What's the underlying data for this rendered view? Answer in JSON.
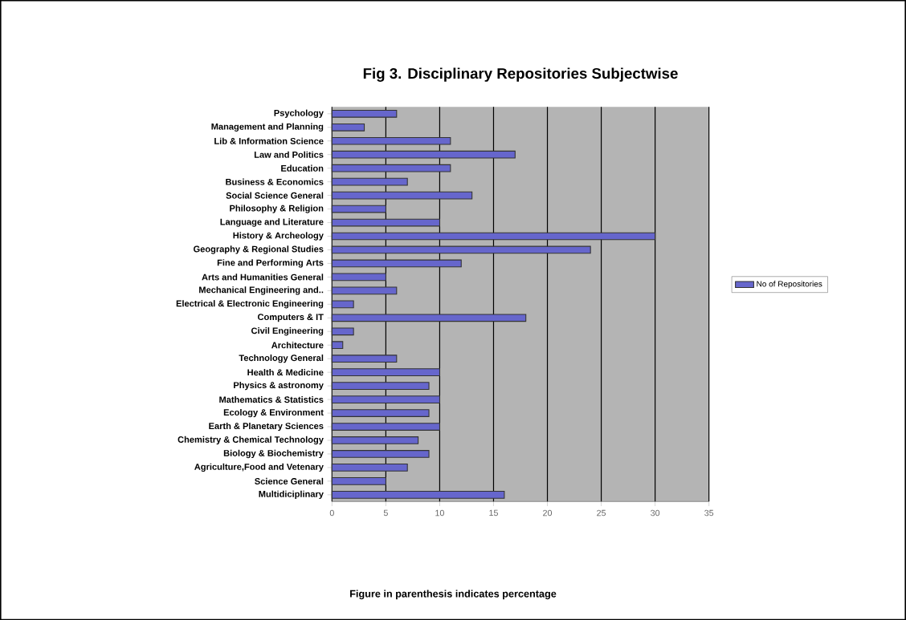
{
  "chart_data": {
    "type": "bar",
    "orientation": "horizontal",
    "title": "Fig 3. Disciplinary Repositories Subjectwise",
    "categories": [
      "Psychology",
      "Management and Planning",
      "Lib & Information Science",
      "Law and Politics",
      "Education",
      "Business & Economics",
      "Social Science General",
      "Philosophy & Religion",
      "Language and Literature",
      "History & Archeology",
      "Geography & Regional Studies",
      "Fine and Performing Arts",
      "Arts and Humanities General",
      "Mechanical Engineering and..",
      "Electrical & Electronic Engineering",
      "Computers & IT",
      "Civil Engineering",
      "Architecture",
      "Technology General",
      "Health & Medicine",
      "Physics & astronomy",
      "Mathematics & Statistics",
      "Ecology & Environment",
      "Earth & Planetary Sciences",
      "Chemistry & Chemical Technology",
      "Biology & Biochemistry",
      "Agriculture,Food and Vetenary",
      "Science General",
      "Multidiciplinary"
    ],
    "series": [
      {
        "name": "No of Repositories",
        "color": "#6666cc",
        "values": [
          6,
          3,
          11,
          17,
          11,
          7,
          13,
          5,
          10,
          30,
          24,
          12,
          5,
          6,
          2,
          18,
          2,
          1,
          6,
          10,
          9,
          10,
          9,
          10,
          8,
          9,
          7,
          5,
          16
        ]
      }
    ],
    "xlim": [
      0,
      35
    ],
    "xticks": [
      0,
      5,
      10,
      15,
      20,
      25,
      30,
      35
    ],
    "grid": "x",
    "legend": "right",
    "annotations": [
      "Figure in parenthesis indicates percentage"
    ]
  }
}
